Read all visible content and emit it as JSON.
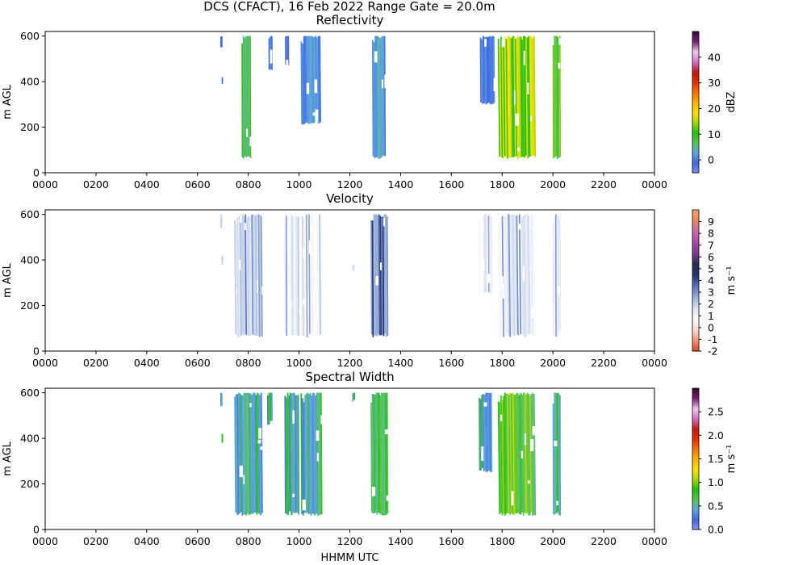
{
  "figure": {
    "suptitle": "DCS (CFACT), 16 Feb 2022 Range Gate = 20.0m"
  },
  "chart_data": [
    {
      "type": "heatmap",
      "title": "Reflectivity",
      "xlabel": "",
      "ylabel": "m AGL",
      "x_ticks": [
        "0000",
        "0200",
        "0400",
        "0600",
        "0800",
        "1000",
        "1200",
        "1400",
        "1600",
        "1800",
        "2000",
        "2200",
        "0000"
      ],
      "y_ticks": [
        0,
        200,
        400,
        600
      ],
      "xlim_hours": [
        0,
        24
      ],
      "ylim": [
        0,
        620
      ],
      "colorbar": {
        "label": "dBZ",
        "ticks": [
          0,
          10,
          20,
          30,
          40
        ],
        "range": [
          -5,
          50
        ]
      },
      "cmap": [
        "#7d8ef2",
        "#4169e1",
        "#5fa8e0",
        "#59c457",
        "#1fbf12",
        "#a6d60e",
        "#ffe100",
        "#ffb300",
        "#ff7300",
        "#e62e00",
        "#c01812",
        "#d86bc9",
        "#f2ccf0",
        "#7a1f7a",
        "#3a0a3a"
      ],
      "echo_bands": [
        {
          "start": 6.9,
          "end": 6.98,
          "top": 600,
          "bottom": 550,
          "value": -2
        },
        {
          "start": 6.95,
          "end": 7.0,
          "top": 420,
          "bottom": 390,
          "value": -3
        },
        {
          "start": 7.75,
          "end": 8.1,
          "top": 600,
          "bottom": 60,
          "value": 5
        },
        {
          "start": 8.8,
          "end": 8.95,
          "top": 600,
          "bottom": 450,
          "value": -1
        },
        {
          "start": 9.45,
          "end": 9.6,
          "top": 600,
          "bottom": 470,
          "value": -2
        },
        {
          "start": 10.1,
          "end": 10.85,
          "top": 600,
          "bottom": 210,
          "value": 0
        },
        {
          "start": 12.9,
          "end": 13.4,
          "top": 600,
          "bottom": 60,
          "value": 1
        },
        {
          "start": 17.15,
          "end": 17.7,
          "top": 600,
          "bottom": 300,
          "value": -1
        },
        {
          "start": 17.9,
          "end": 19.3,
          "top": 600,
          "bottom": 60,
          "value": 9
        },
        {
          "start": 20.0,
          "end": 20.3,
          "top": 600,
          "bottom": 60,
          "value": 6
        }
      ]
    },
    {
      "type": "heatmap",
      "title": "Velocity",
      "xlabel": "",
      "ylabel": "m AGL",
      "x_ticks": [
        "0000",
        "0200",
        "0400",
        "0600",
        "0800",
        "1000",
        "1200",
        "1400",
        "1600",
        "1800",
        "2000",
        "2200",
        "0000"
      ],
      "y_ticks": [
        0,
        200,
        400,
        600
      ],
      "xlim_hours": [
        0,
        24
      ],
      "ylim": [
        0,
        620
      ],
      "colorbar": {
        "label": "m s⁻¹",
        "ticks": [
          -2,
          -1,
          0,
          1,
          2,
          3,
          4,
          5,
          6,
          7,
          8,
          9
        ],
        "range": [
          -2,
          10
        ]
      },
      "cmap": [
        "#e0451a",
        "#f29477",
        "#fbd8cc",
        "#ffffff",
        "#d9e2f2",
        "#9aafd8",
        "#5a74b8",
        "#24366f",
        "#262b53",
        "#7a3b8c",
        "#a648a8",
        "#c469b3",
        "#e38a5e",
        "#f7a56b"
      ],
      "echo_bands": [
        {
          "start": 6.9,
          "end": 6.98,
          "top": 600,
          "bottom": 540,
          "value": 2.0
        },
        {
          "start": 6.95,
          "end": 7.0,
          "top": 420,
          "bottom": 380,
          "value": 2.0
        },
        {
          "start": 7.5,
          "end": 8.55,
          "top": 600,
          "bottom": 60,
          "value": 1.7
        },
        {
          "start": 9.45,
          "end": 10.0,
          "top": 600,
          "bottom": 60,
          "value": 1.0
        },
        {
          "start": 10.1,
          "end": 10.9,
          "top": 600,
          "bottom": 60,
          "value": 0.6
        },
        {
          "start": 12.1,
          "end": 12.2,
          "top": 380,
          "bottom": 350,
          "value": 1.5
        },
        {
          "start": 12.85,
          "end": 13.5,
          "top": 600,
          "bottom": 60,
          "value": 2.6
        },
        {
          "start": 17.1,
          "end": 17.6,
          "top": 600,
          "bottom": 250,
          "value": 0.9
        },
        {
          "start": 17.9,
          "end": 19.3,
          "top": 600,
          "bottom": 60,
          "value": 1.2
        },
        {
          "start": 20.0,
          "end": 20.3,
          "top": 600,
          "bottom": 60,
          "value": 1.1
        }
      ]
    },
    {
      "type": "heatmap",
      "title": "Spectral Width",
      "xlabel": "HHMM UTC",
      "ylabel": "m AGL",
      "x_ticks": [
        "0000",
        "0200",
        "0400",
        "0600",
        "0800",
        "1000",
        "1200",
        "1400",
        "1600",
        "1800",
        "2000",
        "2200",
        "0000"
      ],
      "y_ticks": [
        0,
        200,
        400,
        600
      ],
      "xlim_hours": [
        0,
        24
      ],
      "ylim": [
        0,
        620
      ],
      "colorbar": {
        "label": "m s⁻¹",
        "ticks": [
          "0.0",
          "0.5",
          "1.0",
          "1.5",
          "2.0",
          "2.5"
        ],
        "range": [
          0,
          3
        ]
      },
      "cmap": [
        "#8b9af0",
        "#4169e1",
        "#5fa8e0",
        "#59c457",
        "#1fbf12",
        "#a6d60e",
        "#ffe100",
        "#ffb300",
        "#ff7300",
        "#e62e00",
        "#c01812",
        "#d86bc9",
        "#f2ccf0",
        "#7a1f7a",
        "#3a0a3a"
      ],
      "echo_bands": [
        {
          "start": 6.9,
          "end": 6.98,
          "top": 600,
          "bottom": 540,
          "value": 0.4
        },
        {
          "start": 6.95,
          "end": 7.0,
          "top": 420,
          "bottom": 380,
          "value": 0.4
        },
        {
          "start": 7.5,
          "end": 8.55,
          "top": 600,
          "bottom": 60,
          "value": 0.35
        },
        {
          "start": 8.75,
          "end": 8.95,
          "top": 600,
          "bottom": 460,
          "value": 0.3
        },
        {
          "start": 9.45,
          "end": 10.0,
          "top": 600,
          "bottom": 60,
          "value": 0.35
        },
        {
          "start": 10.1,
          "end": 10.9,
          "top": 600,
          "bottom": 60,
          "value": 0.35
        },
        {
          "start": 12.1,
          "end": 12.2,
          "top": 600,
          "bottom": 560,
          "value": 0.4
        },
        {
          "start": 12.85,
          "end": 13.5,
          "top": 600,
          "bottom": 60,
          "value": 0.55
        },
        {
          "start": 17.1,
          "end": 17.6,
          "top": 600,
          "bottom": 250,
          "value": 0.3
        },
        {
          "start": 17.9,
          "end": 19.3,
          "top": 600,
          "bottom": 60,
          "value": 0.6
        },
        {
          "start": 20.0,
          "end": 20.3,
          "top": 600,
          "bottom": 60,
          "value": 0.45
        }
      ]
    }
  ]
}
